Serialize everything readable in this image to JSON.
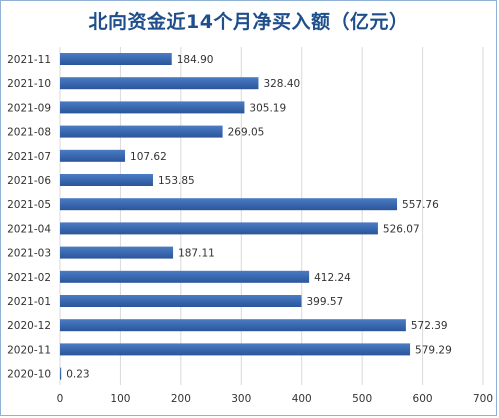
{
  "chart_data": {
    "type": "bar",
    "orientation": "horizontal",
    "title": "北向资金近14个月净买入额（亿元）",
    "categories": [
      "2021-11",
      "2021-10",
      "2021-09",
      "2021-08",
      "2021-07",
      "2021-06",
      "2021-05",
      "2021-04",
      "2021-03",
      "2021-02",
      "2021-01",
      "2020-12",
      "2020-11",
      "2020-10"
    ],
    "values": [
      184.9,
      328.4,
      305.19,
      269.05,
      107.62,
      153.85,
      557.76,
      526.07,
      187.11,
      412.24,
      399.57,
      572.39,
      579.29,
      0.23
    ],
    "value_labels": [
      "184.90",
      "328.40",
      "305.19",
      "269.05",
      "107.62",
      "153.85",
      "557.76",
      "526.07",
      "187.11",
      "412.24",
      "399.57",
      "572.39",
      "579.29",
      "0.23"
    ],
    "xlim": [
      0,
      700
    ],
    "xticks": [
      "0",
      "100",
      "200",
      "300",
      "400",
      "500",
      "600",
      "700"
    ],
    "grid": true,
    "legend": "none",
    "bar_color": "#2e5fa8",
    "bar_color_light": "#4a7cc4",
    "grid_color": "#d9d9d9",
    "title_color": "#1f4e8c"
  }
}
